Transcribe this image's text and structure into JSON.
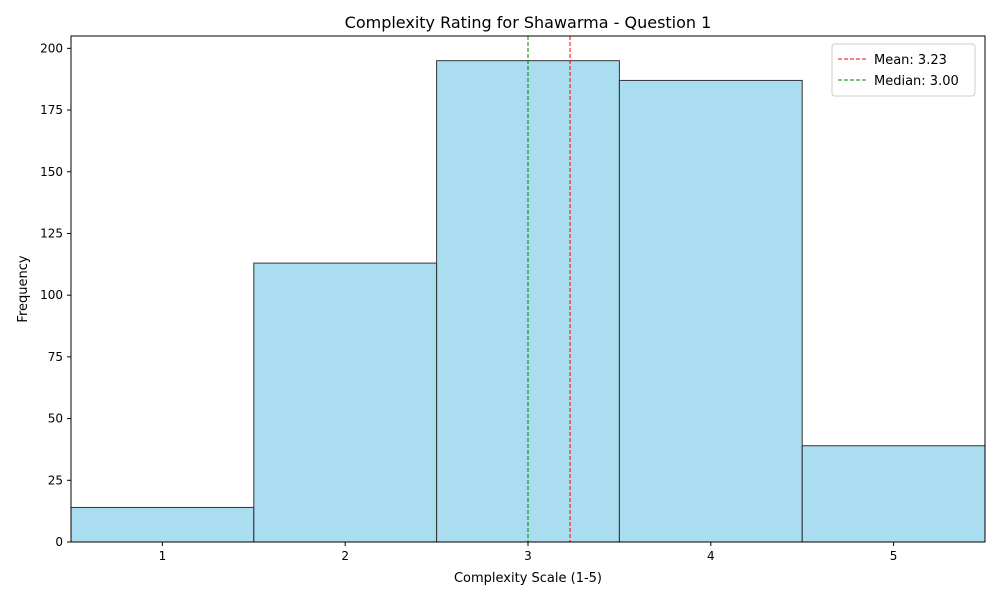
{
  "chart_data": {
    "type": "bar",
    "title": "Complexity Rating for Shawarma - Question 1",
    "xlabel": "Complexity Scale (1-5)",
    "ylabel": "Frequency",
    "categories": [
      "1",
      "2",
      "3",
      "4",
      "5"
    ],
    "x": [
      1,
      2,
      3,
      4,
      5
    ],
    "values": [
      14,
      113,
      195,
      187,
      39
    ],
    "xlim": [
      0.5,
      5.5
    ],
    "ylim": [
      0,
      205
    ],
    "yticks": [
      0,
      25,
      50,
      75,
      100,
      125,
      150,
      175,
      200
    ],
    "grid": false,
    "legend_position": "top-right",
    "bar_color": "#87ceeb",
    "bar_edge_color": "#333333",
    "reference_lines": [
      {
        "label": "Mean: 3.23",
        "x": 3.23,
        "color": "#ff0000",
        "style": "dashed"
      },
      {
        "label": "Median: 3.00",
        "x": 3.0,
        "color": "#008000",
        "style": "dashed"
      }
    ]
  }
}
